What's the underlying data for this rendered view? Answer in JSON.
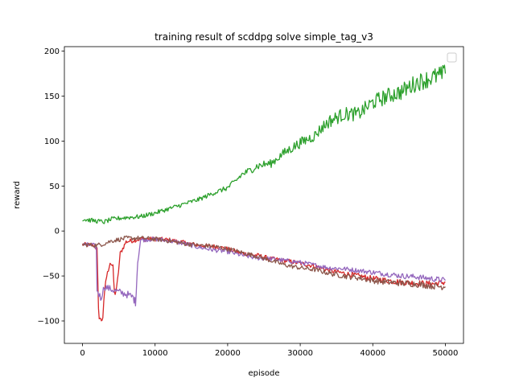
{
  "chart_data": {
    "type": "line",
    "title": "training result of scddpg solve simple_tag_v3",
    "xlabel": "episode",
    "ylabel": "reward",
    "xlim": [
      -2500,
      52500
    ],
    "ylim": [
      -125,
      205
    ],
    "xticks": [
      0,
      10000,
      20000,
      30000,
      40000,
      50000
    ],
    "yticks": [
      -100,
      -50,
      0,
      50,
      100,
      150,
      200
    ],
    "grid": false,
    "legend": {
      "placement": "upper right",
      "entries": []
    },
    "series": [
      {
        "color": "#d62728",
        "points": [
          [
            0,
            -15
          ],
          [
            1500,
            -16
          ],
          [
            2000,
            -20
          ],
          [
            2200,
            -90
          ],
          [
            2500,
            -100
          ],
          [
            2800,
            -95
          ],
          [
            3200,
            -55
          ],
          [
            3800,
            -35
          ],
          [
            4200,
            -40
          ],
          [
            4400,
            -70
          ],
          [
            4700,
            -65
          ],
          [
            5200,
            -25
          ],
          [
            6000,
            -12
          ],
          [
            8000,
            -9
          ],
          [
            10000,
            -9
          ],
          [
            12000,
            -10
          ],
          [
            14000,
            -13
          ],
          [
            16000,
            -16
          ],
          [
            18000,
            -17
          ],
          [
            20000,
            -20
          ],
          [
            22000,
            -25
          ],
          [
            24000,
            -27
          ],
          [
            26000,
            -31
          ],
          [
            28000,
            -33
          ],
          [
            30000,
            -36
          ],
          [
            32000,
            -39
          ],
          [
            34000,
            -44
          ],
          [
            36000,
            -47
          ],
          [
            38000,
            -50
          ],
          [
            40000,
            -53
          ],
          [
            42000,
            -55
          ],
          [
            44000,
            -57
          ],
          [
            46000,
            -58
          ],
          [
            48000,
            -59
          ],
          [
            50000,
            -57
          ]
        ]
      },
      {
        "color": "#9467bd",
        "points": [
          [
            0,
            -15
          ],
          [
            1500,
            -16
          ],
          [
            1900,
            -18
          ],
          [
            2000,
            -65
          ],
          [
            2500,
            -75
          ],
          [
            3000,
            -62
          ],
          [
            4000,
            -65
          ],
          [
            5000,
            -68
          ],
          [
            6000,
            -70
          ],
          [
            7000,
            -74
          ],
          [
            7300,
            -80
          ],
          [
            7600,
            -35
          ],
          [
            8000,
            -10
          ],
          [
            10000,
            -9
          ],
          [
            12000,
            -11
          ],
          [
            14000,
            -14
          ],
          [
            16000,
            -18
          ],
          [
            18000,
            -21
          ],
          [
            20000,
            -23
          ],
          [
            22000,
            -27
          ],
          [
            24000,
            -30
          ],
          [
            26000,
            -31
          ],
          [
            28000,
            -33
          ],
          [
            30000,
            -35
          ],
          [
            32000,
            -38
          ],
          [
            34000,
            -41
          ],
          [
            36000,
            -42
          ],
          [
            38000,
            -44
          ],
          [
            40000,
            -46
          ],
          [
            42000,
            -48
          ],
          [
            44000,
            -50
          ],
          [
            46000,
            -51
          ],
          [
            48000,
            -53
          ],
          [
            50000,
            -55
          ]
        ]
      },
      {
        "color": "#8c564b",
        "points": [
          [
            0,
            -15
          ],
          [
            2000,
            -16
          ],
          [
            3000,
            -14
          ],
          [
            4000,
            -11
          ],
          [
            6000,
            -8
          ],
          [
            8000,
            -8
          ],
          [
            10000,
            -9
          ],
          [
            12000,
            -11
          ],
          [
            14000,
            -14
          ],
          [
            16000,
            -16
          ],
          [
            18000,
            -17
          ],
          [
            20000,
            -20
          ],
          [
            22000,
            -24
          ],
          [
            24000,
            -28
          ],
          [
            26000,
            -33
          ],
          [
            28000,
            -38
          ],
          [
            30000,
            -41
          ],
          [
            32000,
            -43
          ],
          [
            34000,
            -47
          ],
          [
            36000,
            -50
          ],
          [
            38000,
            -52
          ],
          [
            40000,
            -55
          ],
          [
            42000,
            -57
          ],
          [
            44000,
            -58
          ],
          [
            46000,
            -59
          ],
          [
            48000,
            -61
          ],
          [
            50000,
            -62
          ]
        ]
      },
      {
        "color": "#2ca02c",
        "points": [
          [
            0,
            13
          ],
          [
            2000,
            11
          ],
          [
            3000,
            10
          ],
          [
            4000,
            13
          ],
          [
            6000,
            15
          ],
          [
            8000,
            16
          ],
          [
            10000,
            20
          ],
          [
            12000,
            25
          ],
          [
            14000,
            30
          ],
          [
            16000,
            35
          ],
          [
            18000,
            42
          ],
          [
            20000,
            48
          ],
          [
            21000,
            55
          ],
          [
            22000,
            63
          ],
          [
            23000,
            67
          ],
          [
            24000,
            72
          ],
          [
            25000,
            74
          ],
          [
            26000,
            75
          ],
          [
            27000,
            82
          ],
          [
            28000,
            88
          ],
          [
            30000,
            98
          ],
          [
            32000,
            106
          ],
          [
            33000,
            115
          ],
          [
            34000,
            122
          ],
          [
            36000,
            130
          ],
          [
            38000,
            130
          ],
          [
            40000,
            143
          ],
          [
            42000,
            150
          ],
          [
            44000,
            155
          ],
          [
            46000,
            165
          ],
          [
            48000,
            170
          ],
          [
            50000,
            175
          ]
        ]
      }
    ]
  }
}
